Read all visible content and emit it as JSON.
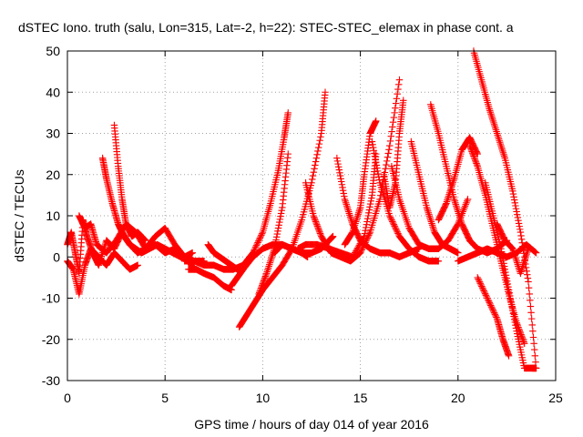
{
  "chart_data": {
    "type": "scatter",
    "title": "dSTEC Iono. truth (salu, Lon=315, Lat=-2, h=22): STEC-STEC_elemax in phase cont. a",
    "xlabel": "GPS time / hours of day 014 of year 2016",
    "ylabel": "dSTEC  / TECUs",
    "xlim": [
      0,
      25
    ],
    "ylim": [
      -30,
      50
    ],
    "xticks": [
      0,
      5,
      10,
      15,
      20,
      25
    ],
    "yticks": [
      -30,
      -20,
      -10,
      0,
      10,
      20,
      30,
      40,
      50
    ],
    "grid": true,
    "marker": "plus",
    "color": "#ff0000",
    "series": [
      {
        "x": [
          0.0,
          0.2,
          0.4,
          0.6,
          0.8,
          1.0,
          1.3,
          1.6,
          2.0,
          2.4,
          2.8,
          3.2,
          3.6,
          4.0,
          4.5,
          5.0,
          5.5,
          6.0,
          6.4
        ],
        "y": [
          3,
          6,
          1,
          -4,
          9,
          5,
          1,
          -2,
          4,
          2,
          6,
          3,
          1,
          2,
          3,
          1,
          2,
          0,
          1
        ]
      },
      {
        "x": [
          0.0,
          0.3,
          0.6,
          0.9,
          1.2,
          1.6,
          2.0,
          2.4,
          2.8,
          3.2,
          3.6
        ],
        "y": [
          -1,
          -3,
          -9,
          -2,
          2,
          0,
          -2,
          1,
          -1,
          -3,
          -2
        ]
      },
      {
        "x": [
          1.8,
          2.0,
          2.3,
          2.6,
          2.9,
          3.2,
          3.5,
          3.8,
          4.2,
          4.6,
          5.0,
          5.4,
          5.8,
          6.2,
          6.5
        ],
        "y": [
          24,
          19,
          13,
          8,
          5,
          3,
          2,
          1,
          2,
          3,
          2,
          1,
          0,
          -1,
          -3
        ]
      },
      {
        "x": [
          2.4,
          2.6,
          2.8,
          3.0,
          3.3,
          3.6,
          4.0
        ],
        "y": [
          32,
          22,
          14,
          8,
          5,
          6,
          4
        ]
      },
      {
        "x": [
          0.6,
          0.9,
          1.2,
          1.5,
          2.0,
          2.5,
          3.0,
          3.5,
          4.0,
          4.5,
          5.0,
          5.5,
          6.0,
          6.5,
          7.0
        ],
        "y": [
          10,
          7,
          8,
          3,
          1,
          4,
          8,
          6,
          2,
          5,
          7,
          3,
          0,
          -1,
          -1
        ]
      },
      {
        "x": [
          6.0,
          6.5,
          7.0,
          7.5,
          8.0,
          8.5,
          9.0,
          9.5,
          10.0,
          10.4,
          10.8,
          11.1,
          11.3
        ],
        "y": [
          -1,
          -1,
          -2,
          -2,
          -3,
          -3,
          -2,
          1,
          6,
          13,
          21,
          29,
          35
        ]
      },
      {
        "x": [
          6.2,
          6.6,
          7.0,
          7.5,
          8.0,
          8.4
        ],
        "y": [
          -3,
          -3,
          -4,
          -5,
          -7,
          -8
        ]
      },
      {
        "x": [
          7.2,
          7.5,
          7.8,
          8.1,
          8.4,
          8.7,
          9.0
        ],
        "y": [
          3,
          1,
          0,
          -1,
          -2,
          -3,
          -3
        ]
      },
      {
        "x": [
          8.4,
          8.7,
          9.0,
          9.5,
          10.0,
          10.5,
          11.0,
          11.5,
          12.0,
          12.3
        ],
        "y": [
          -7,
          -5,
          -3,
          0,
          2,
          3,
          3,
          2,
          1,
          0
        ]
      },
      {
        "x": [
          8.8,
          9.2,
          9.6,
          10.0,
          10.5,
          11.0,
          11.5,
          12.0,
          12.5,
          13.0,
          13.2
        ],
        "y": [
          -17,
          -14,
          -11,
          -8,
          -5,
          -2,
          2,
          9,
          18,
          30,
          40
        ]
      },
      {
        "x": [
          9.8,
          10.2,
          10.6,
          11.0,
          11.3
        ],
        "y": [
          -9,
          -4,
          2,
          12,
          25
        ]
      },
      {
        "x": [
          10.6,
          11.0,
          11.5,
          12.0,
          12.5,
          13.0,
          13.4,
          13.6
        ],
        "y": [
          1,
          3,
          2,
          1,
          1,
          2,
          4,
          5
        ]
      },
      {
        "x": [
          12.2,
          12.6,
          13.0,
          13.5,
          14.0,
          14.5,
          15.0,
          15.5,
          16.0,
          16.5,
          17.0
        ],
        "y": [
          18,
          10,
          5,
          1,
          0,
          -1,
          1,
          6,
          14,
          27,
          43
        ]
      },
      {
        "x": [
          11.8,
          12.2,
          12.8,
          13.4,
          14.0,
          14.6,
          15.2,
          15.6,
          15.8
        ],
        "y": [
          2,
          3,
          3,
          2,
          1,
          0,
          5,
          15,
          25
        ]
      },
      {
        "x": [
          13.8,
          14.2,
          14.6,
          15.0,
          15.5,
          16.0,
          16.5,
          17.0,
          17.5,
          18.0
        ],
        "y": [
          24,
          14,
          8,
          4,
          2,
          1,
          1,
          0,
          1,
          2
        ]
      },
      {
        "x": [
          14.2,
          14.6,
          15.0,
          15.2,
          15.5,
          15.8
        ],
        "y": [
          3,
          6,
          12,
          20,
          30,
          33
        ]
      },
      {
        "x": [
          15.6,
          16.0,
          16.5,
          17.0,
          17.5,
          18.0,
          18.5,
          19.0
        ],
        "y": [
          28,
          18,
          10,
          5,
          2,
          0,
          -1,
          -1
        ]
      },
      {
        "x": [
          16.2,
          16.5,
          16.8,
          17.0,
          17.2
        ],
        "y": [
          20,
          12,
          18,
          30,
          38
        ]
      },
      {
        "x": [
          16.6,
          17.0,
          17.5,
          18.0,
          18.5,
          19.0,
          19.5,
          20.0,
          20.5
        ],
        "y": [
          22,
          14,
          7,
          3,
          2,
          2,
          4,
          8,
          14
        ]
      },
      {
        "x": [
          17.6,
          18.0,
          18.4,
          18.8,
          19.2,
          19.6,
          20.0
        ],
        "y": [
          28,
          20,
          12,
          6,
          3,
          2,
          1
        ]
      },
      {
        "x": [
          18.6,
          19.0,
          19.4,
          19.8,
          20.2,
          20.6,
          21.0,
          21.5,
          22.0,
          22.5
        ],
        "y": [
          37,
          30,
          22,
          14,
          8,
          4,
          2,
          1,
          2,
          4
        ]
      },
      {
        "x": [
          19.0,
          19.4,
          19.8,
          20.2,
          20.6,
          21.0
        ],
        "y": [
          9,
          13,
          19,
          26,
          29,
          25
        ]
      },
      {
        "x": [
          20.6,
          21.0,
          21.4,
          21.8,
          22.2,
          22.6,
          23.0,
          23.4
        ],
        "y": [
          27,
          22,
          15,
          7,
          -1,
          -9,
          -16,
          -21
        ]
      },
      {
        "x": [
          20.8,
          21.2,
          21.6,
          22.0,
          22.4,
          22.8,
          23.2,
          23.6,
          24.0
        ],
        "y": [
          50,
          43,
          36,
          30,
          24,
          16,
          6,
          -6,
          -27
        ]
      },
      {
        "x": [
          21.4,
          21.8,
          22.2,
          22.6,
          23.0,
          23.4,
          23.8,
          24.0
        ],
        "y": [
          18,
          10,
          2,
          -8,
          -18,
          -27,
          -27,
          -27
        ]
      },
      {
        "x": [
          20.0,
          20.5,
          21.0,
          21.5,
          22.0,
          22.5,
          23.0,
          23.5,
          24.0
        ],
        "y": [
          -1,
          0,
          1,
          2,
          1,
          0,
          1,
          3,
          1
        ]
      },
      {
        "x": [
          21.0,
          21.5,
          22.0,
          22.3,
          22.6
        ],
        "y": [
          -5,
          -10,
          -15,
          -20,
          -24
        ]
      },
      {
        "x": [
          22.0,
          22.4,
          22.8,
          23.2,
          23.6
        ],
        "y": [
          8,
          4,
          2,
          -4,
          2
        ]
      }
    ]
  }
}
